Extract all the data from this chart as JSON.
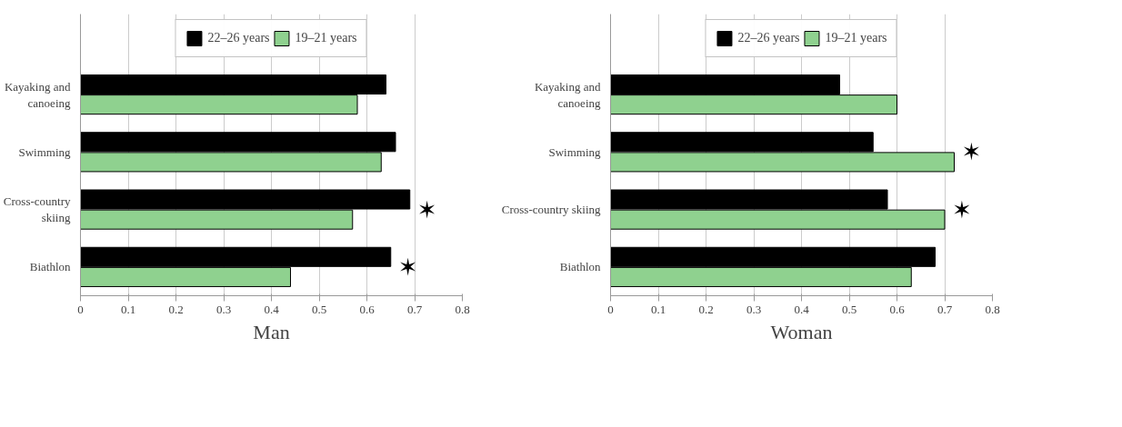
{
  "chart_data": [
    {
      "type": "bar",
      "orientation": "horizontal",
      "xlabel": "Man",
      "categories": [
        "Kayaking and\ncanoeing",
        "Swimming",
        "Cross-country\nskiing",
        "Biathlon"
      ],
      "series": [
        {
          "name": "22–26 years",
          "color": "#000000",
          "values": [
            0.64,
            0.66,
            0.69,
            0.65
          ]
        },
        {
          "name": "19–21 years",
          "color": "#8fd18f",
          "values": [
            0.58,
            0.63,
            0.57,
            0.44
          ]
        }
      ],
      "xlim": [
        0,
        0.8
      ],
      "xticks": [
        0,
        0.1,
        0.2,
        0.3,
        0.4,
        0.5,
        0.6,
        0.7,
        0.8
      ],
      "grid": "x",
      "legend": "top",
      "annotations": [
        {
          "text": "✶",
          "x": 0.69,
          "y": "Cross-country\nskiing"
        },
        {
          "text": "✶",
          "x": 0.65,
          "y": "Biathlon"
        }
      ]
    },
    {
      "type": "bar",
      "orientation": "horizontal",
      "xlabel": "Woman",
      "categories": [
        "Kayaking and\ncanoeing",
        "Swimming",
        "Cross-country skiing",
        "Biathlon"
      ],
      "series": [
        {
          "name": "22–26 years",
          "color": "#000000",
          "values": [
            0.48,
            0.55,
            0.58,
            0.68
          ]
        },
        {
          "name": "19–21 years",
          "color": "#8fd18f",
          "values": [
            0.6,
            0.72,
            0.7,
            0.63
          ]
        }
      ],
      "xlim": [
        0,
        0.8
      ],
      "xticks": [
        0,
        0.1,
        0.2,
        0.3,
        0.4,
        0.5,
        0.6,
        0.7,
        0.8
      ],
      "grid": "x",
      "legend": "top",
      "annotations": [
        {
          "text": "✶",
          "x": 0.72,
          "y": "Swimming"
        },
        {
          "text": "✶",
          "x": 0.7,
          "y": "Cross-country skiing"
        }
      ]
    }
  ]
}
